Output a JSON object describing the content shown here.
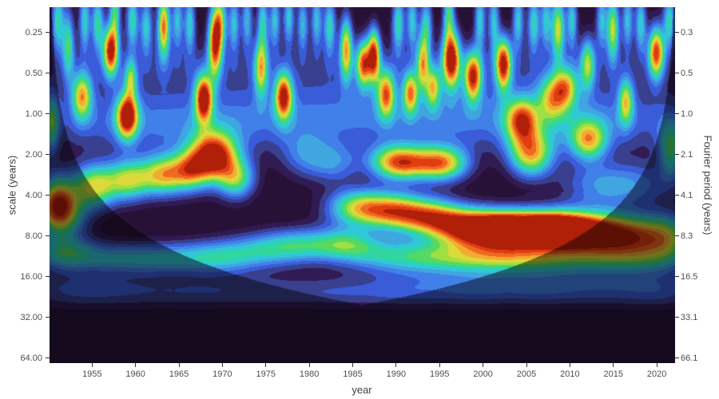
{
  "figure": {
    "background": "#ffffff",
    "text_color": "#4d4d4d",
    "tick_color": "#333333"
  },
  "axes": {
    "x_title": "year",
    "left_title": "scale (years)",
    "right_title": "Fourier period (years)",
    "x_ticks": [
      1955,
      1960,
      1965,
      1970,
      1975,
      1980,
      1985,
      1990,
      1995,
      2000,
      2005,
      2010,
      2015,
      2020
    ],
    "y_ticks_left": [
      {
        "label": "0.25",
        "value": 0.25
      },
      {
        "label": "0.50",
        "value": 0.5
      },
      {
        "label": "1.00",
        "value": 1.0
      },
      {
        "label": "2.00",
        "value": 2.0
      },
      {
        "label": "4.00",
        "value": 4.0
      },
      {
        "label": "8.00",
        "value": 8.0
      },
      {
        "label": "16.00",
        "value": 16.0
      },
      {
        "label": "32.00",
        "value": 32.0
      },
      {
        "label": "64.00",
        "value": 64.0
      }
    ],
    "y_ticks_right": [
      {
        "label": "0.3",
        "value": 0.25
      },
      {
        "label": "0.5",
        "value": 0.5
      },
      {
        "label": "1.0",
        "value": 1.0
      },
      {
        "label": "2.1",
        "value": 2.0
      },
      {
        "label": "4.1",
        "value": 4.0
      },
      {
        "label": "8.3",
        "value": 8.0
      },
      {
        "label": "16.5",
        "value": 16.0
      },
      {
        "label": "33.1",
        "value": 32.0
      },
      {
        "label": "66.1",
        "value": 64.0
      }
    ]
  },
  "chart_data": {
    "type": "heatmap",
    "subtype": "wavelet-power-scalogram",
    "xlabel": "year",
    "ylabel_left": "scale (years)",
    "ylabel_right": "Fourier period (years)",
    "x_domain": [
      1950.1,
      2022.1
    ],
    "scale_domain": [
      0.162,
      69.5
    ],
    "y_scale": "log2",
    "contour_levels": 15,
    "colormap": [
      "#281137",
      "#311b54",
      "#38408f",
      "#3a5cd8",
      "#4180e8",
      "#3fa6e0",
      "#30c8d8",
      "#2fd6a0",
      "#55d962",
      "#a0df42",
      "#dcd93a",
      "#f2ab31",
      "#ef6a20",
      "#e13d10",
      "#b01f08"
    ],
    "cone_of_influence": {
      "scale_equals_years_from_edge_divided_by": 1.4,
      "shade_multiplier": 0.52
    },
    "blob_format": [
      "year_center",
      "scale_years_center",
      "peak_power_0to1",
      "sigma_years",
      "sigma_octaves"
    ],
    "power_blobs": [
      [
        1951.0,
        0.2,
        0.5,
        0.5,
        0.55
      ],
      [
        1952.2,
        0.3,
        0.52,
        0.5,
        0.6
      ],
      [
        1954.1,
        0.2,
        0.48,
        0.45,
        0.55
      ],
      [
        1955.6,
        0.21,
        0.52,
        0.5,
        0.5
      ],
      [
        1957.1,
        0.335,
        0.98,
        0.6,
        0.42
      ],
      [
        1957.6,
        0.17,
        0.55,
        0.45,
        0.5
      ],
      [
        1959.0,
        1.03,
        0.98,
        0.85,
        0.38
      ],
      [
        1959.4,
        0.55,
        0.5,
        0.5,
        0.35
      ],
      [
        1959.6,
        0.2,
        0.52,
        0.5,
        0.5
      ],
      [
        1961.2,
        0.22,
        0.46,
        0.5,
        0.5
      ],
      [
        1963.2,
        0.22,
        0.88,
        0.5,
        0.55
      ],
      [
        1964.8,
        0.2,
        0.44,
        0.45,
        0.5
      ],
      [
        1966.2,
        0.21,
        0.48,
        0.45,
        0.5
      ],
      [
        1969.1,
        0.285,
        0.95,
        0.55,
        0.6
      ],
      [
        1967.8,
        0.76,
        1.0,
        0.7,
        0.4
      ],
      [
        1969.8,
        0.2,
        0.52,
        0.5,
        0.5
      ],
      [
        1971.3,
        0.21,
        0.44,
        0.45,
        0.5
      ],
      [
        1972.8,
        0.2,
        0.42,
        0.45,
        0.5
      ],
      [
        1974.4,
        0.45,
        0.66,
        0.55,
        0.5
      ],
      [
        1974.6,
        0.2,
        0.46,
        0.45,
        0.5
      ],
      [
        1976.0,
        0.2,
        0.44,
        0.45,
        0.5
      ],
      [
        1977.0,
        0.73,
        0.9,
        0.7,
        0.4
      ],
      [
        1977.6,
        0.19,
        0.46,
        0.45,
        0.5
      ],
      [
        1979.2,
        0.21,
        0.42,
        0.45,
        0.5
      ],
      [
        1980.8,
        0.2,
        0.44,
        0.45,
        0.5
      ],
      [
        1982.3,
        0.22,
        0.5,
        0.5,
        0.5
      ],
      [
        1984.2,
        0.32,
        0.76,
        0.5,
        0.55
      ],
      [
        1986.2,
        0.42,
        0.8,
        0.6,
        0.4
      ],
      [
        1987.4,
        0.36,
        0.9,
        0.5,
        0.45
      ],
      [
        1988.8,
        0.7,
        0.72,
        0.7,
        0.4
      ],
      [
        1990.2,
        0.21,
        0.52,
        0.5,
        0.5
      ],
      [
        1991.6,
        0.69,
        0.68,
        0.6,
        0.35
      ],
      [
        1991.8,
        0.2,
        0.46,
        0.45,
        0.5
      ],
      [
        1993.4,
        0.22,
        0.48,
        0.5,
        0.5
      ],
      [
        1993.0,
        0.42,
        0.6,
        0.5,
        0.45
      ],
      [
        1994.2,
        0.63,
        0.58,
        0.6,
        0.35
      ],
      [
        1996.3,
        0.385,
        1.02,
        0.7,
        0.5
      ],
      [
        1996.0,
        0.17,
        0.52,
        0.45,
        0.5
      ],
      [
        1998.8,
        0.52,
        0.88,
        0.7,
        0.42
      ],
      [
        1999.6,
        0.2,
        0.48,
        0.45,
        0.5
      ],
      [
        2001.2,
        0.2,
        0.44,
        0.45,
        0.5
      ],
      [
        2002.3,
        0.42,
        0.94,
        0.65,
        0.45
      ],
      [
        2004.0,
        0.2,
        0.46,
        0.45,
        0.5
      ],
      [
        2005.8,
        0.21,
        0.5,
        0.5,
        0.5
      ],
      [
        2007.2,
        0.2,
        0.44,
        0.45,
        0.5
      ],
      [
        2008.6,
        0.23,
        0.72,
        0.55,
        0.55
      ],
      [
        2010.2,
        0.2,
        0.46,
        0.45,
        0.5
      ],
      [
        2012.0,
        0.42,
        0.56,
        0.6,
        0.45
      ],
      [
        2013.6,
        0.2,
        0.42,
        0.45,
        0.5
      ],
      [
        2014.9,
        0.23,
        0.7,
        0.5,
        0.55
      ],
      [
        2016.4,
        0.8,
        0.58,
        0.6,
        0.4
      ],
      [
        2016.6,
        0.2,
        0.44,
        0.45,
        0.5
      ],
      [
        2018.1,
        0.21,
        0.48,
        0.45,
        0.5
      ],
      [
        2019.9,
        0.345,
        0.92,
        0.65,
        0.45
      ],
      [
        2021.4,
        0.2,
        0.5,
        0.5,
        0.5
      ],
      [
        1953.8,
        0.73,
        0.7,
        0.8,
        0.4
      ],
      [
        1950.3,
        1.15,
        0.5,
        0.6,
        0.5
      ],
      [
        1969.0,
        2.05,
        1.04,
        1.9,
        0.42
      ],
      [
        1966.3,
        2.6,
        0.6,
        1.5,
        0.35
      ],
      [
        1963.2,
        2.8,
        0.72,
        1.8,
        0.35
      ],
      [
        1959.2,
        3.05,
        0.65,
        1.8,
        0.35
      ],
      [
        1955.2,
        3.4,
        0.7,
        1.8,
        0.38
      ],
      [
        1951.0,
        4.3,
        0.7,
        1.5,
        0.45
      ],
      [
        1951.5,
        5.6,
        0.52,
        2.0,
        0.4
      ],
      [
        1971.6,
        3.0,
        0.55,
        1.5,
        0.35
      ],
      [
        1979.5,
        2.0,
        0.27,
        2.0,
        0.4
      ],
      [
        1983.0,
        2.3,
        0.29,
        2.0,
        0.35
      ],
      [
        1989.5,
        2.25,
        0.52,
        2.0,
        0.3
      ],
      [
        1992.0,
        2.3,
        0.58,
        2.5,
        0.3
      ],
      [
        1995.6,
        2.3,
        0.64,
        2.0,
        0.3
      ],
      [
        2005.5,
        1.96,
        0.74,
        1.8,
        0.4
      ],
      [
        2004.4,
        1.1,
        0.7,
        1.3,
        0.38
      ],
      [
        2012.1,
        1.55,
        0.66,
        1.5,
        0.35
      ],
      [
        2008.0,
        0.75,
        0.56,
        1.2,
        0.4
      ],
      [
        2009.6,
        0.62,
        0.52,
        1.0,
        0.35
      ],
      [
        2021.6,
        1.8,
        0.52,
        1.0,
        0.5
      ],
      [
        2013.0,
        3.4,
        0.3,
        3.0,
        0.4
      ],
      [
        2018.0,
        3.3,
        0.26,
        3.0,
        0.4
      ],
      [
        1985.5,
        4.9,
        0.66,
        2.5,
        0.32
      ],
      [
        1989.8,
        5.2,
        0.72,
        2.5,
        0.32
      ],
      [
        1994.0,
        5.8,
        0.74,
        2.5,
        0.32
      ],
      [
        1997.8,
        6.8,
        0.78,
        2.5,
        0.32
      ],
      [
        2001.5,
        7.0,
        0.9,
        2.5,
        0.3
      ],
      [
        2005.0,
        7.0,
        1.0,
        3.0,
        0.3
      ],
      [
        2008.3,
        7.1,
        0.92,
        2.5,
        0.3
      ],
      [
        2011.5,
        7.3,
        0.78,
        2.5,
        0.32
      ],
      [
        2015.0,
        7.6,
        0.62,
        2.5,
        0.35
      ],
      [
        2018.5,
        7.8,
        0.5,
        2.5,
        0.35
      ],
      [
        2021.5,
        8.0,
        0.44,
        2.0,
        0.4
      ],
      [
        1951.5,
        10.5,
        0.42,
        2.5,
        0.3
      ],
      [
        1956.0,
        11.5,
        0.28,
        3.5,
        0.28
      ],
      [
        1961.0,
        11.8,
        0.26,
        3.5,
        0.28
      ],
      [
        1966.0,
        11.5,
        0.28,
        3.5,
        0.28
      ],
      [
        1970.5,
        11.2,
        0.34,
        3.0,
        0.3
      ],
      [
        1975.5,
        10.0,
        0.32,
        3.0,
        0.3
      ],
      [
        1980.0,
        9.2,
        0.4,
        3.5,
        0.3
      ],
      [
        1984.5,
        9.0,
        0.33,
        2.5,
        0.28
      ],
      [
        1988.0,
        11.0,
        0.31,
        3.5,
        0.3
      ],
      [
        1993.0,
        11.3,
        0.34,
        3.5,
        0.3
      ],
      [
        1998.0,
        11.4,
        0.38,
        3.5,
        0.3
      ],
      [
        2003.0,
        11.2,
        0.45,
        3.5,
        0.3
      ],
      [
        2008.0,
        11.4,
        0.36,
        3.5,
        0.3
      ],
      [
        2013.5,
        11.6,
        0.31,
        3.5,
        0.3
      ],
      [
        2019.0,
        11.6,
        0.34,
        3.5,
        0.3
      ],
      [
        1952.0,
        20.0,
        0.19,
        4.0,
        0.3
      ],
      [
        1959.0,
        20.5,
        0.16,
        4.0,
        0.28
      ],
      [
        1967.0,
        20.5,
        0.17,
        4.0,
        0.28
      ],
      [
        1975.0,
        20.5,
        0.16,
        4.0,
        0.28
      ],
      [
        1983.0,
        20.5,
        0.17,
        4.0,
        0.28
      ],
      [
        1991.0,
        20.0,
        0.21,
        4.0,
        0.3
      ],
      [
        1999.0,
        19.5,
        0.24,
        4.0,
        0.3
      ],
      [
        2007.0,
        19.5,
        0.24,
        4.0,
        0.3
      ],
      [
        2015.0,
        19.8,
        0.21,
        4.0,
        0.3
      ],
      [
        2021.0,
        20.0,
        0.19,
        3.0,
        0.3
      ],
      [
        1955.0,
        1.1,
        0.17,
        7.0,
        0.55
      ],
      [
        1964.0,
        1.2,
        0.17,
        7.0,
        0.55
      ],
      [
        1973.0,
        1.1,
        0.16,
        7.0,
        0.55
      ],
      [
        1982.0,
        1.0,
        0.15,
        7.0,
        0.55
      ],
      [
        1991.0,
        1.1,
        0.17,
        7.0,
        0.55
      ],
      [
        2000.0,
        1.05,
        0.16,
        7.0,
        0.55
      ],
      [
        2009.0,
        1.1,
        0.17,
        7.0,
        0.55
      ],
      [
        2018.0,
        1.1,
        0.17,
        7.0,
        0.55
      ],
      [
        1956.0,
        0.45,
        0.13,
        6.0,
        0.5
      ],
      [
        1968.0,
        0.45,
        0.14,
        6.0,
        0.5
      ],
      [
        1980.0,
        0.45,
        0.11,
        6.0,
        0.5
      ],
      [
        1992.0,
        0.45,
        0.14,
        6.0,
        0.5
      ],
      [
        2004.0,
        0.45,
        0.12,
        6.0,
        0.5
      ],
      [
        2016.0,
        0.45,
        0.12,
        6.0,
        0.5
      ]
    ]
  }
}
